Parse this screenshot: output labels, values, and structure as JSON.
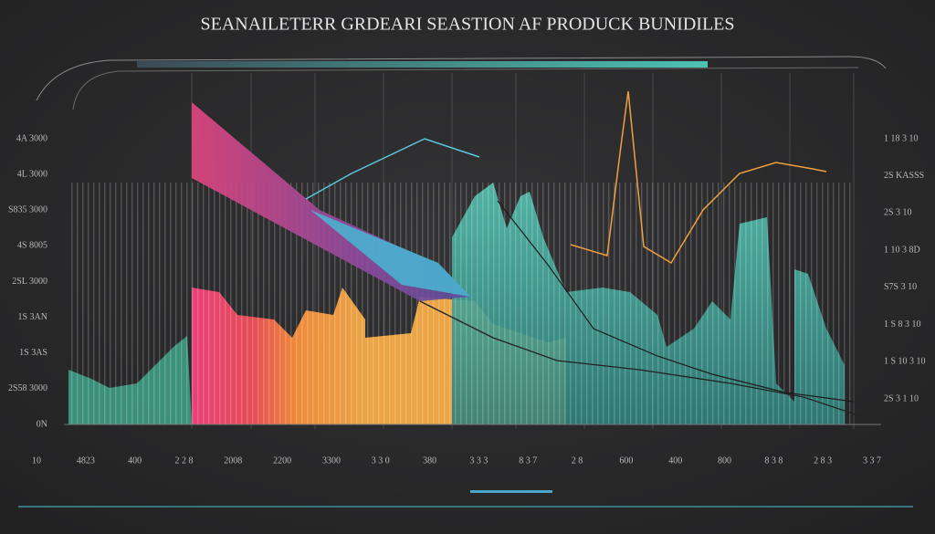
{
  "title": "SEANAILETERR GRDEARI SEASTION AF PRODUCK BUNIDILES",
  "left_labels": [
    "4A 3000",
    "4L 3000",
    "S835 3000",
    "4S 8005",
    "2SL 3000",
    "1S 3AN",
    "1S 3AS",
    "2S58 3000",
    "0N"
  ],
  "right_labels": [
    "1 18 3 10",
    "2S KASSS",
    "2S 3 10",
    "1 10 3 8D",
    "S7S 3 10",
    "1 S 8 3 10",
    "1 S 10 3 10",
    "2S 3 1 10"
  ],
  "bottom_labels": [
    "10",
    "4823",
    "400",
    "2 2 8",
    "2008",
    "2200",
    "3300",
    "3 3 0",
    "380",
    "3 3 3",
    "8 3 7",
    "2 8",
    "600",
    "400",
    "800",
    "8 3 8",
    "2 8 3",
    "3 3 7"
  ]
}
